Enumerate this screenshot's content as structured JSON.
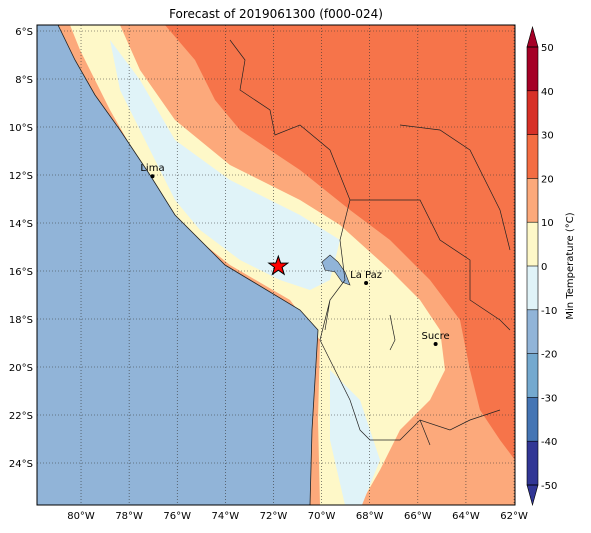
{
  "title": "Forecast of 2019061300 (f000-024)",
  "map": {
    "xlim": [
      -81.83,
      -61.96
    ],
    "ylim": [
      -25.75,
      -5.75
    ],
    "xticks": [
      {
        "value": -80,
        "label": "80°W"
      },
      {
        "value": -78,
        "label": "78°W"
      },
      {
        "value": -76,
        "label": "76°W"
      },
      {
        "value": -74,
        "label": "74°W"
      },
      {
        "value": -72,
        "label": "72°W"
      },
      {
        "value": -70,
        "label": "70°W"
      },
      {
        "value": -68,
        "label": "68°W"
      },
      {
        "value": -66,
        "label": "66°W"
      },
      {
        "value": -64,
        "label": "64°W"
      },
      {
        "value": -62,
        "label": "62°W"
      }
    ],
    "yticks": [
      {
        "value": -6,
        "label": "6°S"
      },
      {
        "value": -8,
        "label": "8°S"
      },
      {
        "value": -10,
        "label": "10°S"
      },
      {
        "value": -12,
        "label": "12°S"
      },
      {
        "value": -14,
        "label": "14°S"
      },
      {
        "value": -16,
        "label": "16°S"
      },
      {
        "value": -18,
        "label": "18°S"
      },
      {
        "value": -20,
        "label": "20°S"
      },
      {
        "value": -22,
        "label": "22°S"
      },
      {
        "value": -24,
        "label": "24°S"
      }
    ],
    "grid": true,
    "cities": [
      {
        "name": "Lima",
        "lon": -77.03,
        "lat": -12.05
      },
      {
        "name": "La Paz",
        "lon": -68.15,
        "lat": -16.5
      },
      {
        "name": "Sucre",
        "lon": -65.26,
        "lat": -19.04
      }
    ],
    "star": {
      "lon": -71.8,
      "lat": -15.8,
      "color": "#ff0000"
    }
  },
  "colorbar": {
    "label": "Min Temperature (°C)",
    "lim": [
      -50,
      50
    ],
    "ticks": [
      -50,
      -40,
      -30,
      -20,
      -10,
      0,
      10,
      20,
      30,
      40,
      50
    ],
    "colors": [
      "#313695",
      "#4575b4",
      "#74a9cf",
      "#91b4d8",
      "#e0f3f8",
      "#fef8c8",
      "#fca97b",
      "#f46d43",
      "#d73027",
      "#a50026"
    ]
  }
}
